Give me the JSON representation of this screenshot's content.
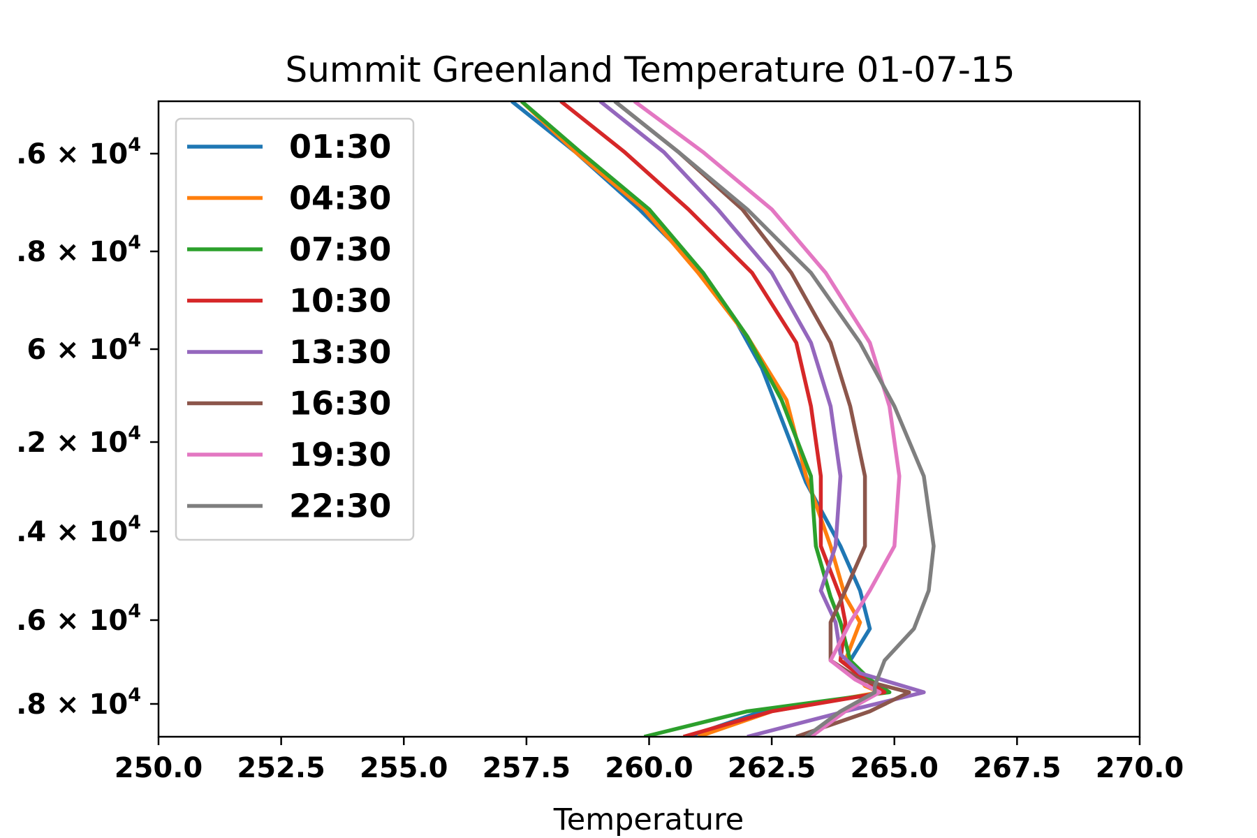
{
  "chart_data": {
    "type": "line",
    "title": "Summit Greenland Temperature 01-07-15",
    "xlabel": "Temperature",
    "ylabel": "",
    "xlim": [
      250.0,
      270.0
    ],
    "x_tick_labels": [
      "250.0",
      "252.5",
      "255.0",
      "257.5",
      "260.0",
      "262.5",
      "265.0",
      "267.5",
      "270.0"
    ],
    "y_tick_labels": [
      {
        "mantissa": ".6",
        "exp": "4"
      },
      {
        "mantissa": ".8",
        "exp": "4"
      },
      {
        "mantissa": "6",
        "exp": "4"
      },
      {
        "mantissa": ".2",
        "exp": "4"
      },
      {
        "mantissa": ".4",
        "exp": "4"
      },
      {
        "mantissa": ".6",
        "exp": "4"
      },
      {
        "mantissa": ".8",
        "exp": "4"
      }
    ],
    "y_tick_times": "× 10",
    "y_scale": "log (inverted, pressure)",
    "legend_position": "upper-left",
    "grid": false,
    "series": [
      {
        "name": "01:30",
        "color": "#1f77b4",
        "x": [
          257.2,
          258.5,
          259.8,
          261.1,
          261.8,
          262.3,
          262.7,
          263.2,
          263.9,
          264.3,
          264.5,
          264.1,
          264.4,
          264.8,
          262.3,
          260.8
        ],
        "y": [
          0.0,
          0.08,
          0.17,
          0.27,
          0.35,
          0.42,
          0.5,
          0.6,
          0.7,
          0.77,
          0.83,
          0.88,
          0.91,
          0.93,
          0.96,
          1.0
        ]
      },
      {
        "name": "04:30",
        "color": "#ff7f0e",
        "x": [
          257.4,
          258.5,
          259.9,
          261.0,
          262.0,
          262.8,
          263.2,
          263.7,
          264.0,
          264.3,
          264.0,
          264.4,
          264.7,
          262.5,
          261.0
        ],
        "y": [
          0.0,
          0.08,
          0.17,
          0.27,
          0.37,
          0.47,
          0.59,
          0.7,
          0.78,
          0.82,
          0.88,
          0.92,
          0.93,
          0.96,
          1.0
        ]
      },
      {
        "name": "07:30",
        "color": "#2ca02c",
        "x": [
          257.4,
          258.6,
          260.0,
          261.1,
          262.0,
          262.7,
          263.3,
          263.4,
          263.7,
          263.9,
          264.1,
          264.5,
          264.9,
          262.0,
          259.9
        ],
        "y": [
          0.0,
          0.08,
          0.17,
          0.27,
          0.37,
          0.47,
          0.59,
          0.7,
          0.78,
          0.82,
          0.88,
          0.91,
          0.93,
          0.96,
          1.0
        ]
      },
      {
        "name": "10:30",
        "color": "#d62728",
        "x": [
          258.2,
          259.5,
          260.8,
          262.1,
          263.0,
          263.3,
          263.5,
          263.5,
          263.9,
          264.0,
          263.9,
          264.4,
          264.8,
          262.5,
          260.7
        ],
        "y": [
          0.0,
          0.08,
          0.17,
          0.27,
          0.38,
          0.48,
          0.59,
          0.7,
          0.78,
          0.82,
          0.88,
          0.91,
          0.93,
          0.96,
          1.0
        ]
      },
      {
        "name": "13:30",
        "color": "#9467bd",
        "x": [
          259.0,
          260.3,
          261.4,
          262.5,
          263.3,
          263.7,
          263.9,
          263.8,
          263.5,
          263.8,
          263.9,
          264.3,
          265.6,
          264.0,
          262.0
        ],
        "y": [
          0.0,
          0.08,
          0.17,
          0.27,
          0.38,
          0.48,
          0.59,
          0.7,
          0.77,
          0.82,
          0.87,
          0.9,
          0.93,
          0.96,
          1.0
        ]
      },
      {
        "name": "16:30",
        "color": "#8c564b",
        "x": [
          259.3,
          260.6,
          261.9,
          262.9,
          263.7,
          264.1,
          264.4,
          264.4,
          264.0,
          263.7,
          263.7,
          264.3,
          265.3,
          264.5,
          263.0
        ],
        "y": [
          0.0,
          0.08,
          0.17,
          0.27,
          0.38,
          0.48,
          0.59,
          0.7,
          0.77,
          0.82,
          0.88,
          0.91,
          0.93,
          0.96,
          1.0
        ]
      },
      {
        "name": "19:30",
        "color": "#e377c2",
        "x": [
          259.7,
          261.1,
          262.5,
          263.6,
          264.5,
          264.9,
          265.1,
          265.0,
          264.5,
          264.1,
          263.7,
          264.2,
          264.7,
          264.0,
          263.3
        ],
        "y": [
          0.0,
          0.08,
          0.17,
          0.27,
          0.38,
          0.48,
          0.59,
          0.7,
          0.77,
          0.82,
          0.88,
          0.91,
          0.93,
          0.96,
          1.0
        ]
      },
      {
        "name": "22:30",
        "color": "#7f7f7f",
        "x": [
          259.3,
          260.6,
          262.0,
          263.3,
          264.3,
          265.0,
          265.6,
          265.8,
          265.7,
          265.4,
          264.8,
          264.6,
          264.6,
          263.9,
          263.2
        ],
        "y": [
          0.0,
          0.08,
          0.17,
          0.27,
          0.38,
          0.48,
          0.59,
          0.7,
          0.77,
          0.83,
          0.88,
          0.92,
          0.93,
          0.96,
          1.0
        ]
      }
    ]
  }
}
